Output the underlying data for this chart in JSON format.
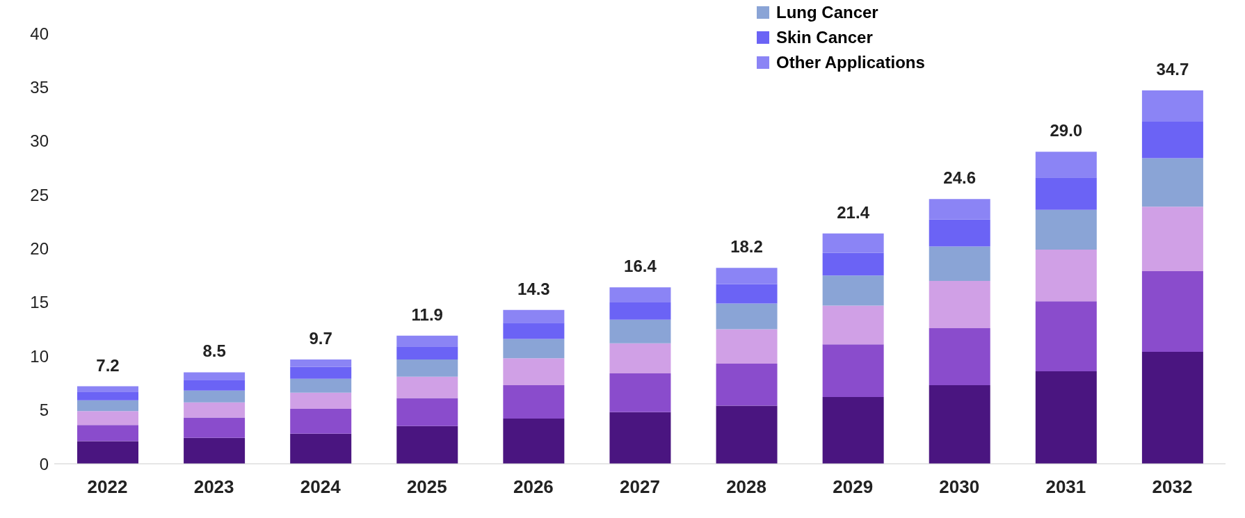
{
  "chart_data": {
    "type": "bar",
    "stacked": true,
    "categories": [
      "2022",
      "2023",
      "2024",
      "2025",
      "2026",
      "2027",
      "2028",
      "2029",
      "2030",
      "2031",
      "2032"
    ],
    "series": [
      {
        "color": "#4a1580",
        "values": [
          2.1,
          2.4,
          2.8,
          3.5,
          4.2,
          4.8,
          5.4,
          6.2,
          7.3,
          8.6,
          10.4
        ]
      },
      {
        "color": "#8a4ccc",
        "values": [
          1.5,
          1.9,
          2.3,
          2.6,
          3.1,
          3.6,
          3.9,
          4.9,
          5.3,
          6.5,
          7.5
        ]
      },
      {
        "color": "#d0a0e6",
        "values": [
          1.3,
          1.4,
          1.5,
          2.0,
          2.5,
          2.8,
          3.2,
          3.6,
          4.4,
          4.8,
          6.0
        ]
      },
      {
        "name": "Lung Cancer",
        "color": "#8aa4d6",
        "values": [
          1.0,
          1.1,
          1.3,
          1.6,
          1.8,
          2.2,
          2.4,
          2.8,
          3.2,
          3.7,
          4.5
        ]
      },
      {
        "name": "Skin Cancer",
        "color": "#6b63f5",
        "values": [
          0.8,
          1.0,
          1.1,
          1.2,
          1.5,
          1.6,
          1.8,
          2.1,
          2.5,
          3.0,
          3.4
        ]
      },
      {
        "name": "Other Applications",
        "color": "#8b84f5",
        "values": [
          0.5,
          0.7,
          0.7,
          1.0,
          1.2,
          1.4,
          1.5,
          1.8,
          1.9,
          2.4,
          2.9
        ]
      }
    ],
    "totals": [
      "7.2",
      "8.5",
      "9.7",
      "11.9",
      "14.3",
      "16.4",
      "18.2",
      "21.4",
      "24.6",
      "29.0",
      "34.7"
    ],
    "ylim": [
      0,
      40
    ],
    "yticks": [
      0,
      5,
      10,
      15,
      20,
      25,
      30,
      35,
      40
    ],
    "grid": false,
    "legend": "top"
  }
}
